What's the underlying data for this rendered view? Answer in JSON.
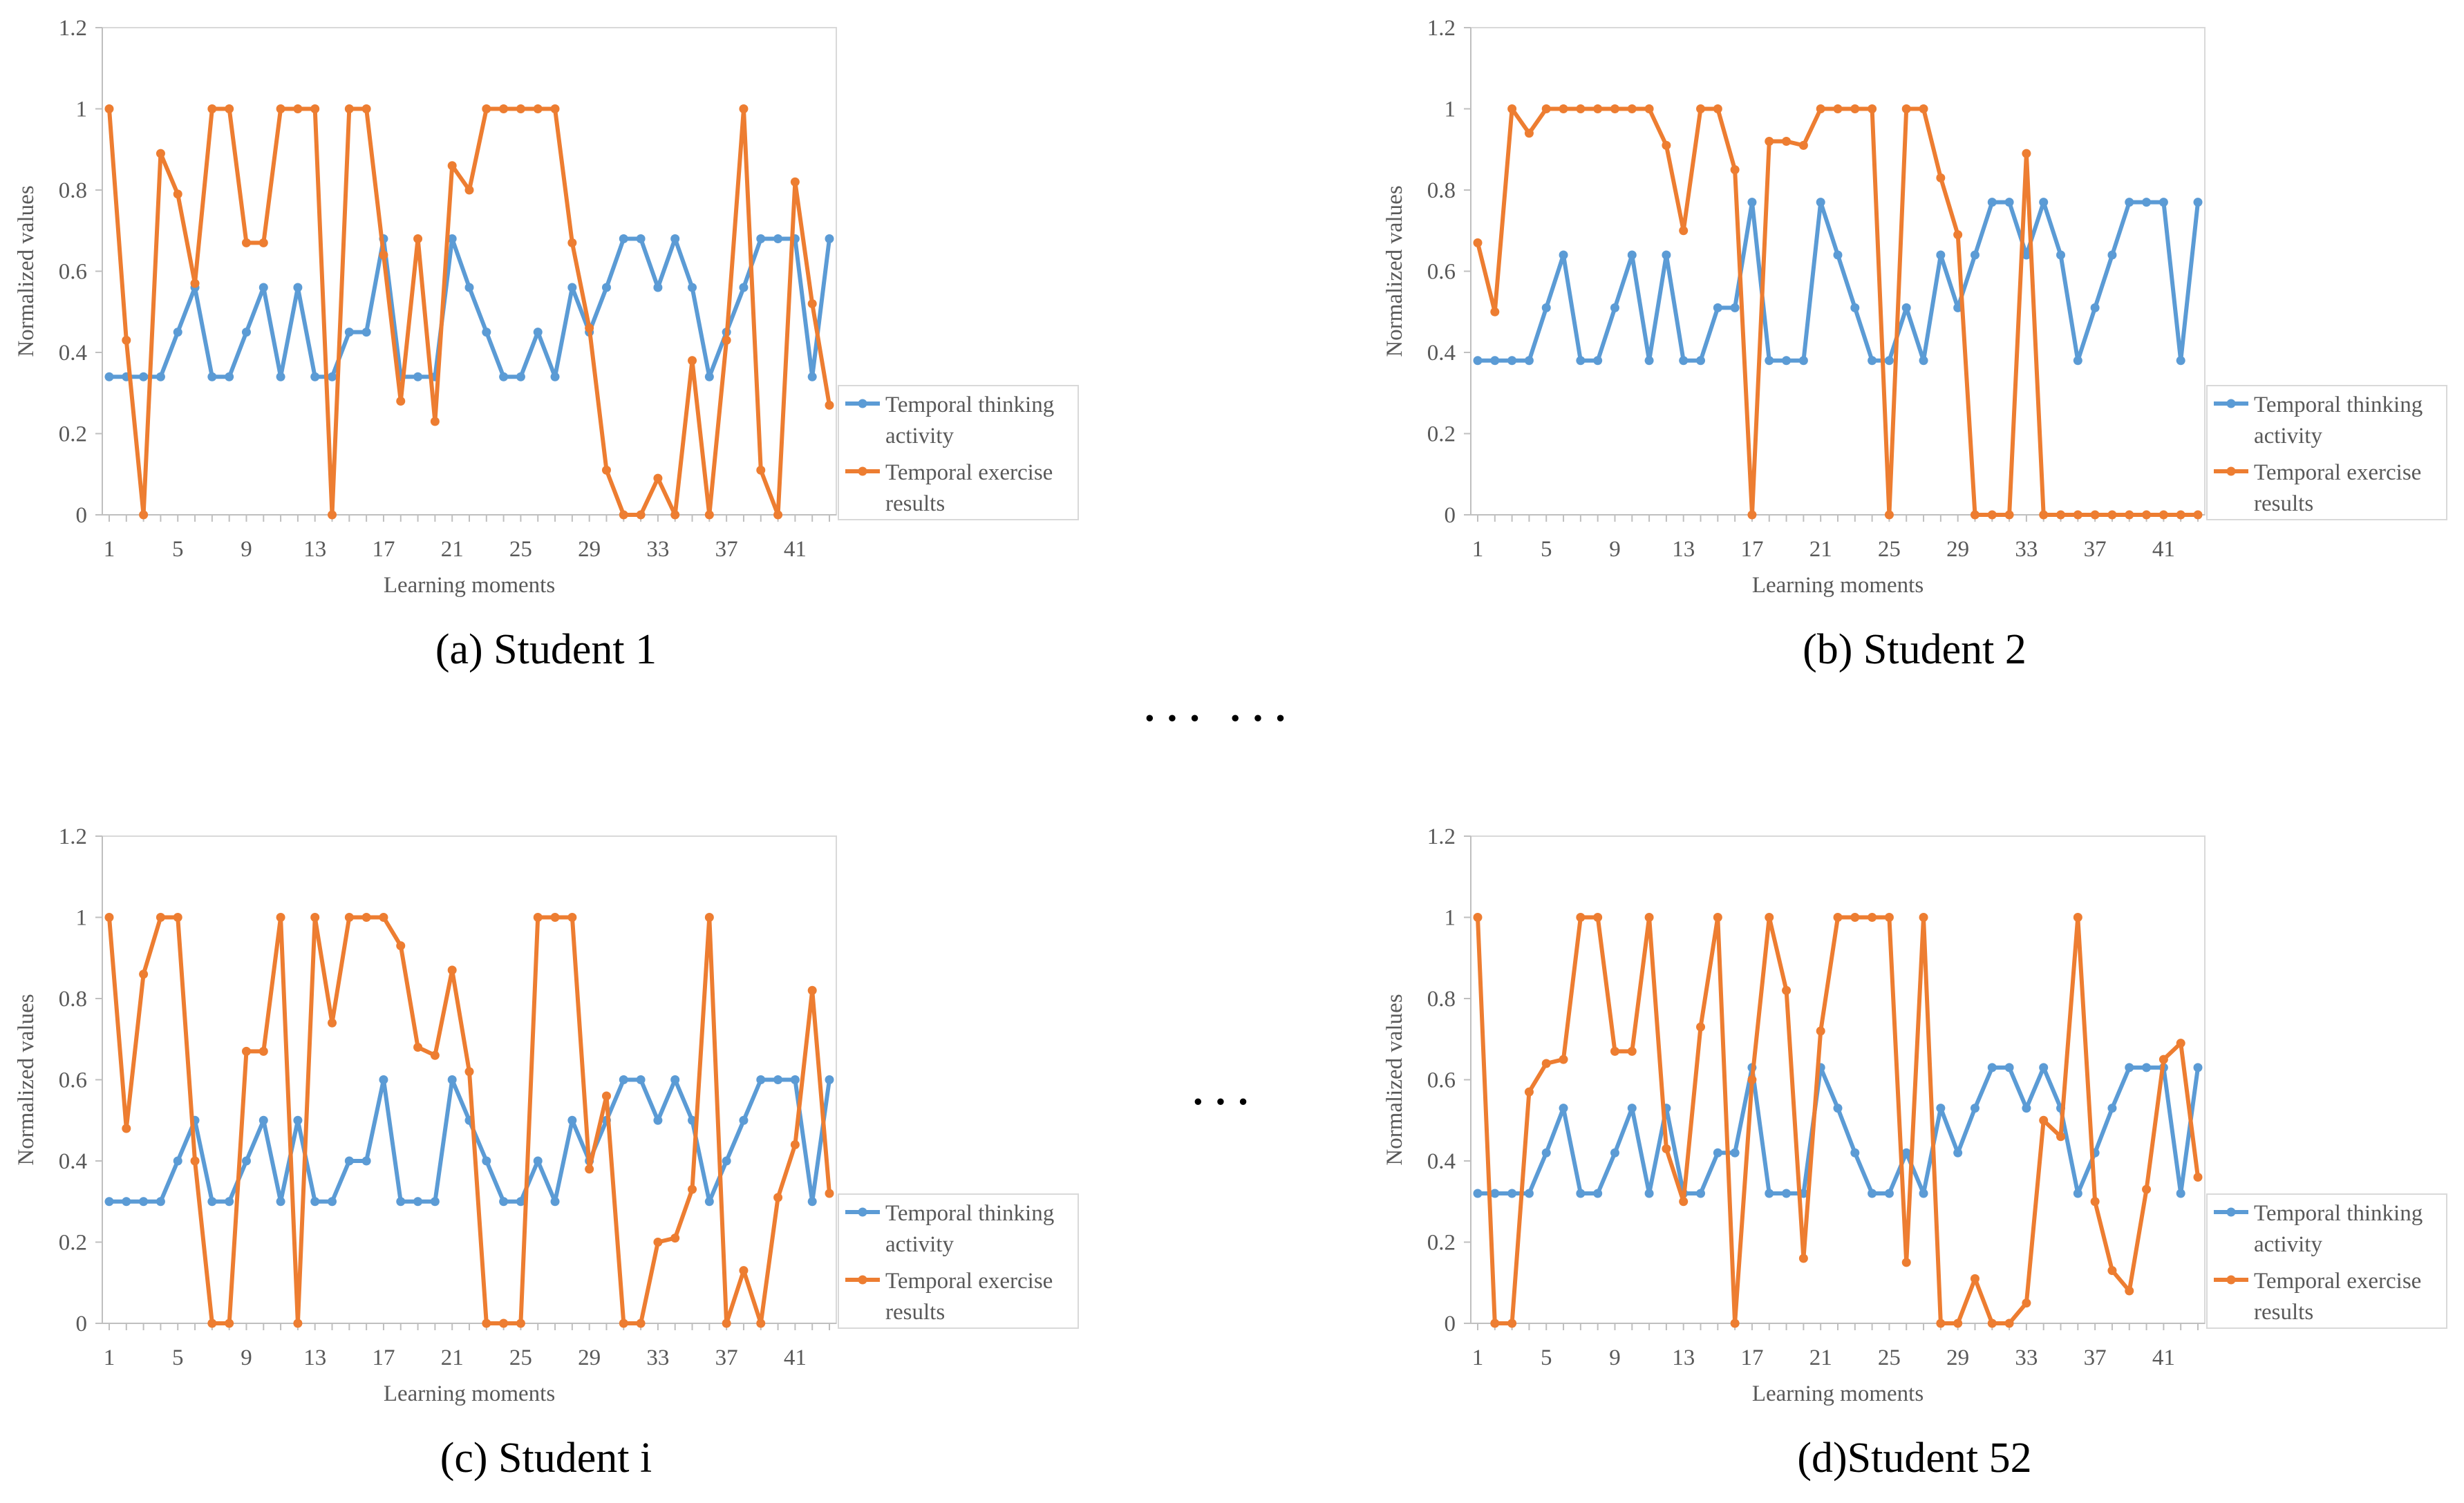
{
  "separators": {
    "top": "··· ···",
    "middle": "···"
  },
  "colors": {
    "thinking": "#5B9BD5",
    "exercise": "#ED7D31",
    "axis": "#bfbfbf",
    "text": "#595959"
  },
  "chart_data": [
    {
      "type": "line",
      "caption": "(a) Student 1",
      "xlabel": "Learning moments",
      "ylabel": "Normalized values",
      "ylim": [
        0,
        1.2
      ],
      "yticks": [
        "0",
        "0.2",
        "0.4",
        "0.6",
        "0.8",
        "1",
        "1.2"
      ],
      "xticks": [
        "1",
        "5",
        "9",
        "13",
        "17",
        "21",
        "25",
        "29",
        "33",
        "37",
        "41"
      ],
      "x_count": 43,
      "legend_position": "right",
      "series": [
        {
          "name": "Temporal thinking activity",
          "values": [
            0.34,
            0.34,
            0.34,
            0.34,
            0.45,
            0.56,
            0.34,
            0.34,
            0.45,
            0.56,
            0.34,
            0.56,
            0.34,
            0.34,
            0.45,
            0.45,
            0.68,
            0.34,
            0.34,
            0.34,
            0.68,
            0.56,
            0.45,
            0.34,
            0.34,
            0.45,
            0.34,
            0.56,
            0.45,
            0.56,
            0.68,
            0.68,
            0.56,
            0.68,
            0.56,
            0.34,
            0.45,
            0.56,
            0.68,
            0.68,
            0.68,
            0.34,
            0.68
          ]
        },
        {
          "name": "Temporal exercise results",
          "values": [
            1,
            0.43,
            0,
            0.89,
            0.79,
            0.57,
            1,
            1,
            0.67,
            0.67,
            1,
            1,
            1,
            0,
            1,
            1,
            0.64,
            0.28,
            0.68,
            0.23,
            0.86,
            0.8,
            1,
            1,
            1,
            1,
            1,
            0.67,
            0.46,
            0.11,
            0,
            0,
            0.09,
            0,
            0.38,
            0,
            0.43,
            1,
            0.11,
            0,
            0.82,
            0.52,
            0.27
          ]
        }
      ]
    },
    {
      "type": "line",
      "caption": "(b) Student 2",
      "xlabel": "Learning moments",
      "ylabel": "Normalized values",
      "ylim": [
        0,
        1.2
      ],
      "yticks": [
        "0",
        "0.2",
        "0.4",
        "0.6",
        "0.8",
        "1",
        "1.2"
      ],
      "xticks": [
        "1",
        "5",
        "9",
        "13",
        "17",
        "21",
        "25",
        "29",
        "33",
        "37",
        "41"
      ],
      "x_count": 43,
      "legend_position": "right",
      "series": [
        {
          "name": "Temporal thinking activity",
          "values": [
            0.38,
            0.38,
            0.38,
            0.38,
            0.51,
            0.64,
            0.38,
            0.38,
            0.51,
            0.64,
            0.38,
            0.64,
            0.38,
            0.38,
            0.51,
            0.51,
            0.77,
            0.38,
            0.38,
            0.38,
            0.77,
            0.64,
            0.51,
            0.38,
            0.38,
            0.51,
            0.38,
            0.64,
            0.51,
            0.64,
            0.77,
            0.77,
            0.64,
            0.77,
            0.64,
            0.38,
            0.51,
            0.64,
            0.77,
            0.77,
            0.77,
            0.38,
            0.77
          ]
        },
        {
          "name": "Temporal exercise results",
          "values": [
            0.67,
            0.5,
            1,
            0.94,
            1,
            1,
            1,
            1,
            1,
            1,
            1,
            0.91,
            0.7,
            1,
            1,
            0.85,
            0,
            0.92,
            0.92,
            0.91,
            1,
            1,
            1,
            1,
            0,
            1,
            1,
            0.83,
            0.69,
            0,
            0,
            0,
            0.89,
            0,
            0,
            0,
            0,
            0,
            0,
            0,
            0,
            0,
            0
          ]
        }
      ]
    },
    {
      "type": "line",
      "caption": "(c) Student i",
      "xlabel": "Learning moments",
      "ylabel": "Normalized values",
      "ylim": [
        0,
        1.2
      ],
      "yticks": [
        "0",
        "0.2",
        "0.4",
        "0.6",
        "0.8",
        "1",
        "1.2"
      ],
      "xticks": [
        "1",
        "5",
        "9",
        "13",
        "17",
        "21",
        "25",
        "29",
        "33",
        "37",
        "41"
      ],
      "x_count": 43,
      "legend_position": "right",
      "series": [
        {
          "name": "Temporal thinking activity",
          "values": [
            0.3,
            0.3,
            0.3,
            0.3,
            0.4,
            0.5,
            0.3,
            0.3,
            0.4,
            0.5,
            0.3,
            0.5,
            0.3,
            0.3,
            0.4,
            0.4,
            0.6,
            0.3,
            0.3,
            0.3,
            0.6,
            0.5,
            0.4,
            0.3,
            0.3,
            0.4,
            0.3,
            0.5,
            0.4,
            0.5,
            0.6,
            0.6,
            0.5,
            0.6,
            0.5,
            0.3,
            0.4,
            0.5,
            0.6,
            0.6,
            0.6,
            0.3,
            0.6
          ]
        },
        {
          "name": "Temporal exercise results",
          "values": [
            1,
            0.48,
            0.86,
            1,
            1,
            0.4,
            0,
            0,
            0.67,
            0.67,
            1,
            0,
            1,
            0.74,
            1,
            1,
            1,
            0.93,
            0.68,
            0.66,
            0.87,
            0.62,
            0,
            0,
            0,
            1,
            1,
            1,
            0.38,
            0.56,
            0,
            0,
            0.2,
            0.21,
            0.33,
            1,
            0,
            0.13,
            0,
            0.31,
            0.44,
            0.82,
            0.32
          ]
        }
      ]
    },
    {
      "type": "line",
      "caption": "(d)Student 52",
      "xlabel": "Learning moments",
      "ylabel": "Normalized values",
      "ylim": [
        0,
        1.2
      ],
      "yticks": [
        "0",
        "0.2",
        "0.4",
        "0.6",
        "0.8",
        "1",
        "1.2"
      ],
      "xticks": [
        "1",
        "5",
        "9",
        "13",
        "17",
        "21",
        "25",
        "29",
        "33",
        "37",
        "41"
      ],
      "x_count": 43,
      "legend_position": "right",
      "series": [
        {
          "name": "Temporal thinking activity",
          "values": [
            0.32,
            0.32,
            0.32,
            0.32,
            0.42,
            0.53,
            0.32,
            0.32,
            0.42,
            0.53,
            0.32,
            0.53,
            0.32,
            0.32,
            0.42,
            0.42,
            0.63,
            0.32,
            0.32,
            0.32,
            0.63,
            0.53,
            0.42,
            0.32,
            0.32,
            0.42,
            0.32,
            0.53,
            0.42,
            0.53,
            0.63,
            0.63,
            0.53,
            0.63,
            0.53,
            0.32,
            0.42,
            0.53,
            0.63,
            0.63,
            0.63,
            0.32,
            0.63
          ]
        },
        {
          "name": "Temporal exercise results",
          "values": [
            1,
            0,
            0,
            0.57,
            0.64,
            0.65,
            1,
            1,
            0.67,
            0.67,
            1,
            0.43,
            0.3,
            0.73,
            1,
            0,
            0.6,
            1,
            0.82,
            0.16,
            0.72,
            1,
            1,
            1,
            1,
            0.15,
            1,
            0,
            0,
            0.11,
            0,
            0,
            0.05,
            0.5,
            0.46,
            1,
            0.3,
            0.13,
            0.08,
            0.33,
            0.65,
            0.69,
            0.36
          ]
        }
      ]
    }
  ]
}
